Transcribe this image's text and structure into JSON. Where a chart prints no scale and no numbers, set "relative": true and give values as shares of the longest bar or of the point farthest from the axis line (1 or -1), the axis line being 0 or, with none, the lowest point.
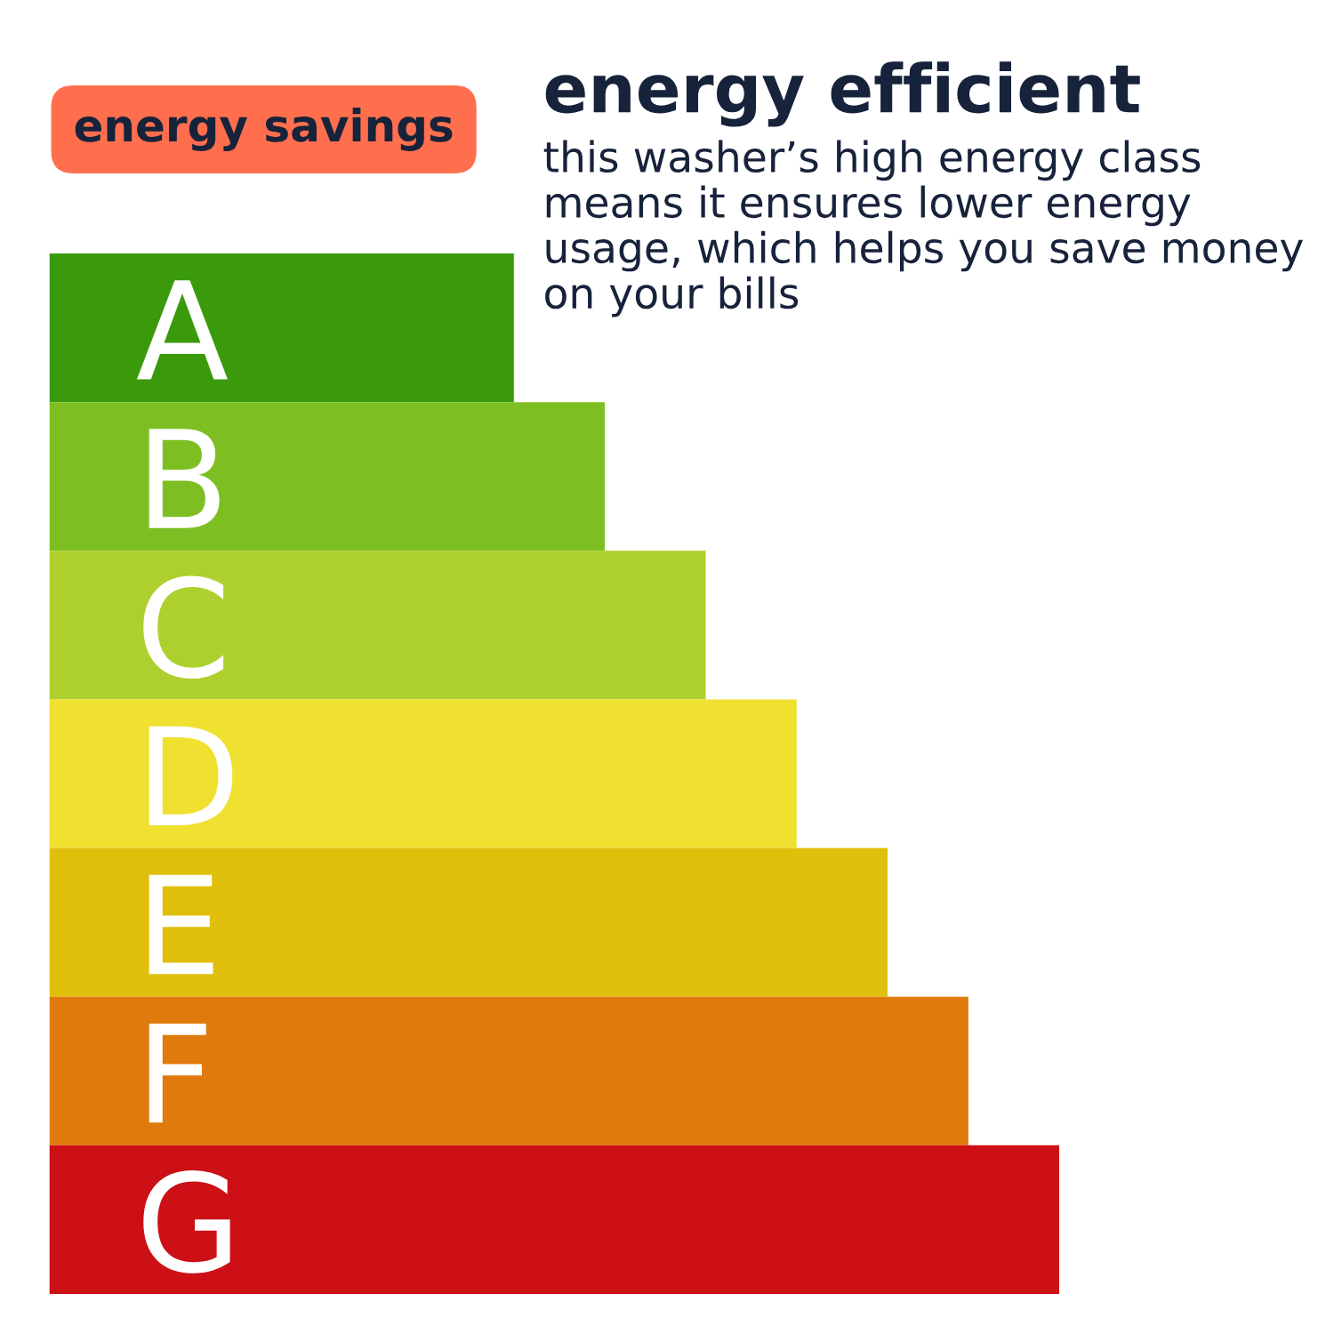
{
  "chart_data": {
    "type": "bar",
    "orientation": "horizontal",
    "relative": true,
    "title": "energy efficient",
    "subtitle": "this washer’s high energy class means it ensures lower energy usage, which helps you save money on your bills",
    "annotations": [
      "energy savings"
    ],
    "categories": [
      "A",
      "B",
      "C",
      "D",
      "E",
      "F",
      "G"
    ],
    "values": [
      0.46,
      0.55,
      0.65,
      0.74,
      0.83,
      0.91,
      1
    ],
    "colors": [
      "#3a9a0c",
      "#7dbf22",
      "#aed02e",
      "#f0e030",
      "#e0bf0c",
      "#e07a0c",
      "#cc1016"
    ],
    "grid": false,
    "legend": false
  }
}
